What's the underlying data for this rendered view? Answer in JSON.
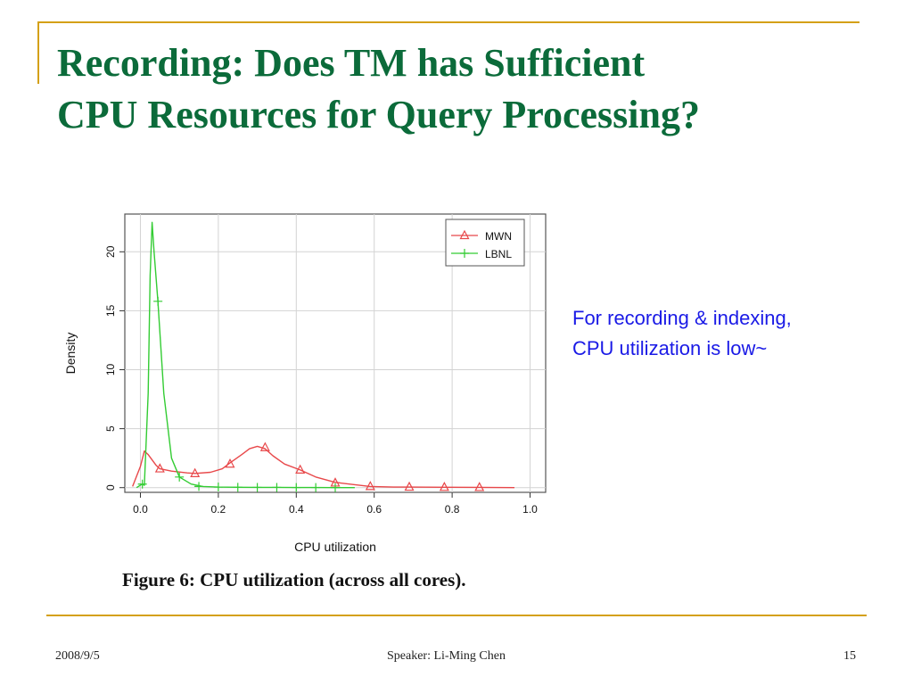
{
  "slide": {
    "title_line1": "Recording: Does TM has Sufficient",
    "title_line2": "CPU Resources for Query Processing?",
    "note_line1": "For recording & indexing,",
    "note_line2": "CPU utilization is low~",
    "caption": "Figure 6:  CPU utilization (across all cores).",
    "footer_date": "2008/9/5",
    "footer_speaker": "Speaker: Li-Ming Chen",
    "footer_page": "15"
  },
  "colors": {
    "title": "#0b6b3a",
    "accent_rule": "#d4a017",
    "note": "#1a1ae6",
    "mwn": "#e8484a",
    "lbnl": "#33cc33"
  },
  "chart_data": {
    "type": "line",
    "xlabel": "CPU utilization",
    "ylabel": "Density",
    "xlim": [
      -0.04,
      1.04
    ],
    "ylim": [
      -0.4,
      23.2
    ],
    "x_ticks": [
      0.0,
      0.2,
      0.4,
      0.6,
      0.8,
      1.0
    ],
    "x_tick_labels": [
      "0.0",
      "0.2",
      "0.4",
      "0.6",
      "0.8",
      "1.0"
    ],
    "y_ticks": [
      0,
      5,
      10,
      15,
      20
    ],
    "y_tick_labels": [
      "0",
      "5",
      "10",
      "15",
      "20"
    ],
    "grid": true,
    "legend_position": "top-right",
    "series": [
      {
        "name": "MWN",
        "color": "#e8484a",
        "marker": "triangle",
        "x": [
          -0.02,
          0.0,
          0.01,
          0.02,
          0.04,
          0.05,
          0.08,
          0.12,
          0.14,
          0.18,
          0.21,
          0.23,
          0.26,
          0.28,
          0.3,
          0.32,
          0.34,
          0.37,
          0.41,
          0.45,
          0.5,
          0.55,
          0.59,
          0.65,
          0.69,
          0.78,
          0.87,
          0.96
        ],
        "y": [
          0.1,
          1.8,
          3.1,
          2.8,
          1.9,
          1.6,
          1.4,
          1.25,
          1.2,
          1.3,
          1.6,
          2.1,
          2.8,
          3.3,
          3.5,
          3.3,
          2.7,
          2.0,
          1.5,
          0.9,
          0.45,
          0.25,
          0.1,
          0.05,
          0.05,
          0.03,
          0.02,
          0.0
        ],
        "marker_x": [
          0.05,
          0.14,
          0.23,
          0.32,
          0.41,
          0.5,
          0.59,
          0.69,
          0.78,
          0.87
        ],
        "marker_y": [
          1.6,
          1.2,
          2.0,
          3.4,
          1.5,
          0.4,
          0.1,
          0.05,
          0.03,
          0.02
        ]
      },
      {
        "name": "LBNL",
        "color": "#33cc33",
        "marker": "plus",
        "x": [
          -0.01,
          0.005,
          0.01,
          0.02,
          0.025,
          0.03,
          0.035,
          0.045,
          0.06,
          0.08,
          0.1,
          0.13,
          0.16,
          0.2,
          0.25,
          0.3,
          0.35,
          0.4,
          0.45,
          0.5,
          0.55
        ],
        "y": [
          0.0,
          0.3,
          0.2,
          8.0,
          18.0,
          22.5,
          20.0,
          15.8,
          8.0,
          2.5,
          0.9,
          0.3,
          0.1,
          0.05,
          0.03,
          0.02,
          0.02,
          0.01,
          0.01,
          0.0,
          0.0
        ],
        "marker_x": [
          0.005,
          0.045,
          0.1,
          0.15,
          0.2,
          0.25,
          0.3,
          0.35,
          0.4,
          0.45,
          0.5
        ],
        "marker_y": [
          0.3,
          15.8,
          0.9,
          0.1,
          0.05,
          0.03,
          0.02,
          0.02,
          0.01,
          0.01,
          0.0
        ]
      }
    ]
  }
}
